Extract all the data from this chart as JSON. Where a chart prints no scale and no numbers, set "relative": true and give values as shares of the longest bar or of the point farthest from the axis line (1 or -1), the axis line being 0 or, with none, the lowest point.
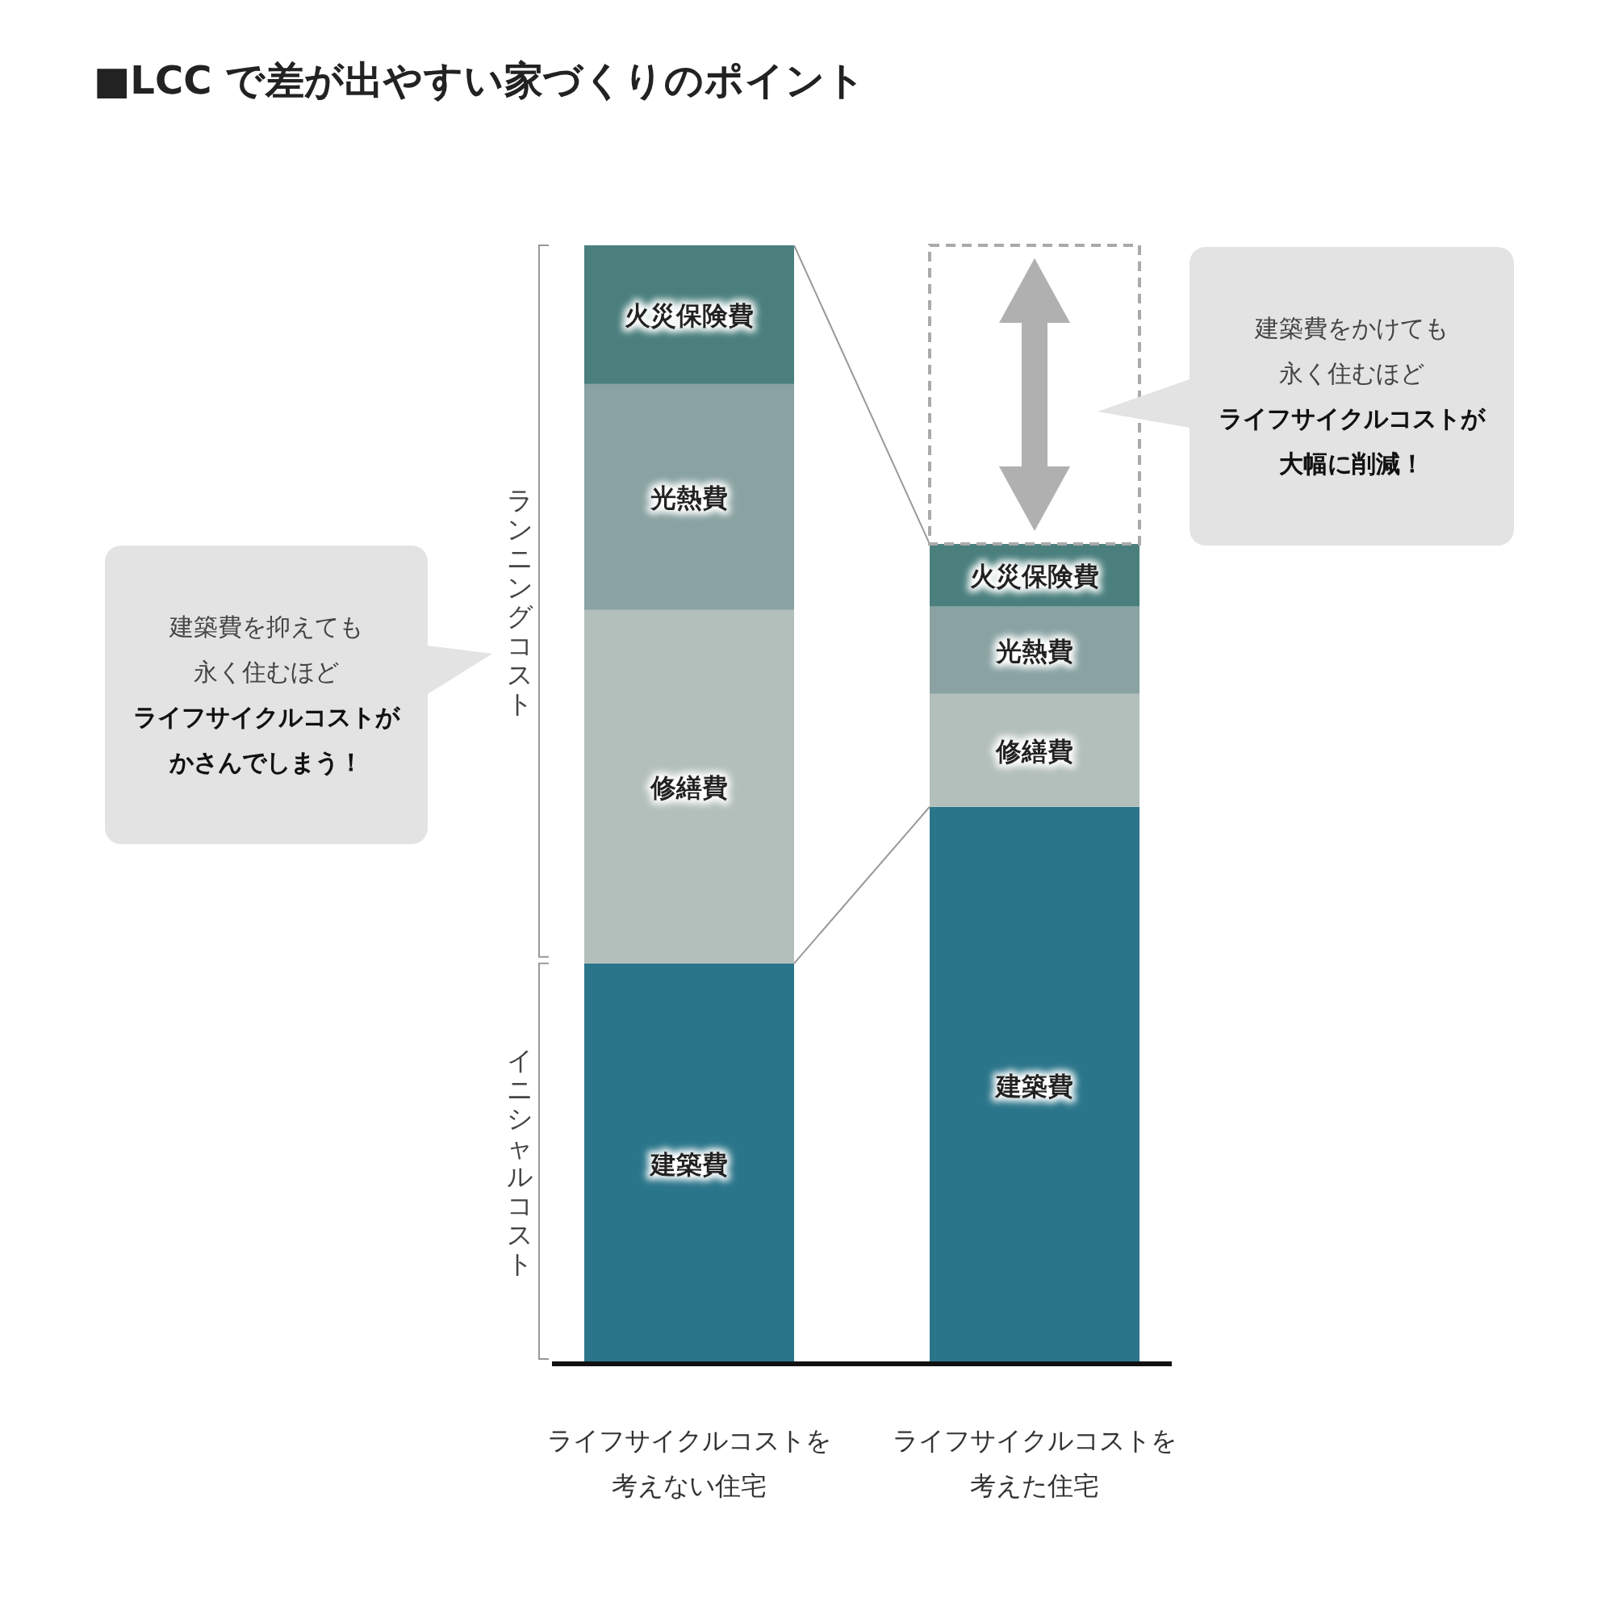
{
  "chart_data": {
    "type": "bar",
    "title": "■LCC で差が出やすい家づくりのポイント",
    "categories": [
      "ライフサイクルコストを考えない住宅",
      "ライフサイクルコストを考えた住宅"
    ],
    "stacked": true,
    "relative": true,
    "series": [
      {
        "name": "建築費",
        "color": "#2b758a",
        "values": [
          0.358,
          0.498
        ]
      },
      {
        "name": "修繕費",
        "color": "#b3bfbb",
        "values": [
          0.316,
          0.101
        ]
      },
      {
        "name": "光熱費",
        "color": "#8aa2a2",
        "values": [
          0.202,
          0.078
        ]
      },
      {
        "name": "火災保険費",
        "color": "#4a7f7d",
        "values": [
          0.124,
          0.056
        ]
      }
    ],
    "annotations": [
      "ランニングコスト",
      "イニシャルコスト",
      "建築費を抑えても永く住むほど",
      "ライフサイクルコストがかさんでしまう！",
      "建築費をかけても永く住むほど",
      "ライフサイクルコストが大幅に削減！"
    ]
  }
}
